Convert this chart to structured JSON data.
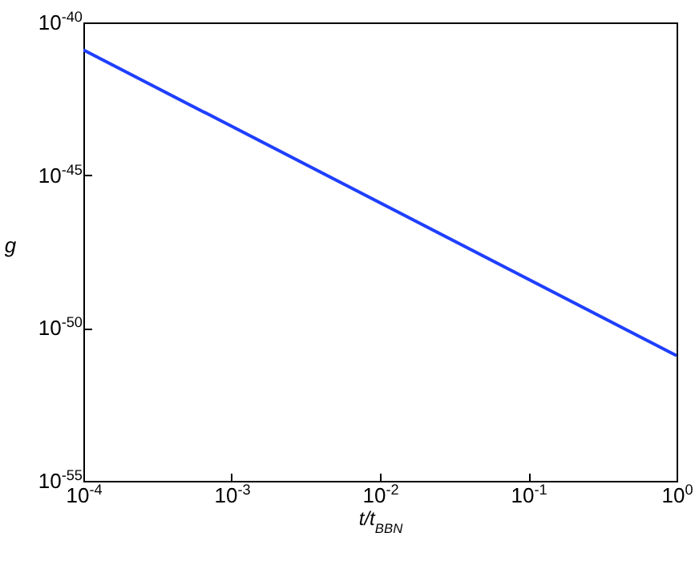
{
  "chart_data": {
    "type": "line",
    "xlabel": "t/t$_{BBN}$",
    "ylabel": "g",
    "log": "xy",
    "x": [
      0.0001,
      1
    ],
    "series": [
      {
        "color": "#1f3fff",
        "values": [
          1.26e-41,
          1.26e-51
        ]
      }
    ],
    "xlim": [
      0.0001,
      1
    ],
    "ylim": [
      1e-55,
      1e-40
    ],
    "xticks": [
      {
        "value": 0.0001,
        "label": "10$^{-4}$"
      },
      {
        "value": 0.001,
        "label": "10$^{-3}$"
      },
      {
        "value": 0.01,
        "label": "10$^{-2}$"
      },
      {
        "value": 0.1,
        "label": "10$^{-1}$"
      },
      {
        "value": 1,
        "label": "10$^{0}$"
      }
    ],
    "yticks": [
      {
        "value": 1e-55,
        "label": "10$^{-55}$"
      },
      {
        "value": 1e-50,
        "label": "10$^{-50}$"
      },
      {
        "value": 1e-45,
        "label": "10$^{-45}$"
      },
      {
        "value": 1e-40,
        "label": "10$^{-40}$"
      }
    ],
    "grid": false,
    "line_style": "solid",
    "marker": "none"
  }
}
